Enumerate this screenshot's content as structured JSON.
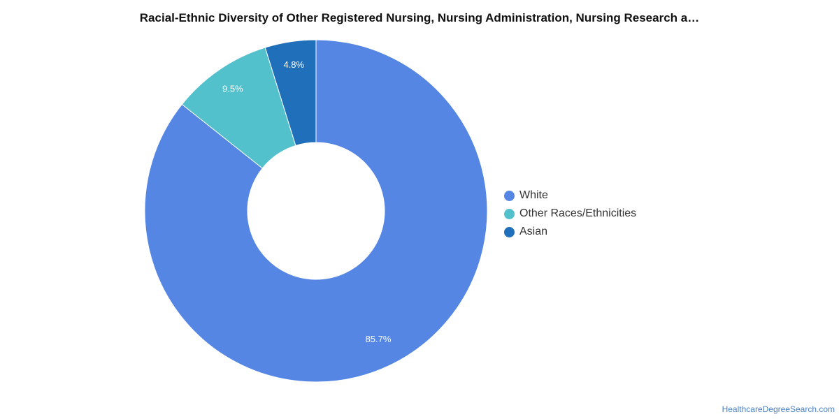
{
  "chart_data": {
    "type": "pie",
    "title": "Racial-Ethnic Diversity of Other Registered Nursing, Nursing Administration, Nursing Research a…",
    "donut": true,
    "categories": [
      "White",
      "Other Races/Ethnicities",
      "Asian"
    ],
    "values": [
      85.7,
      9.5,
      4.8
    ],
    "value_labels": [
      "85.7%",
      "9.5%",
      "4.8%"
    ],
    "colors": [
      "#5586e3",
      "#52c1cc",
      "#1f6fba"
    ],
    "legend_position": "right"
  },
  "legend": {
    "items": [
      {
        "label": "White",
        "color": "#5586e3"
      },
      {
        "label": "Other Races/Ethnicities",
        "color": "#52c1cc"
      },
      {
        "label": "Asian",
        "color": "#1f6fba"
      }
    ]
  },
  "footer": {
    "source": "HealthcareDegreeSearch.com"
  }
}
